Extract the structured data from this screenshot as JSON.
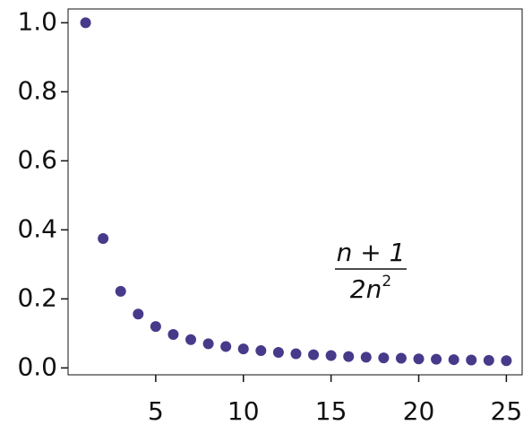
{
  "chart_data": {
    "type": "scatter",
    "color": "#473a8a",
    "x": [
      1,
      2,
      3,
      4,
      5,
      6,
      7,
      8,
      9,
      10,
      11,
      12,
      13,
      14,
      15,
      16,
      17,
      18,
      19,
      20,
      21,
      22,
      23,
      24,
      25
    ],
    "values": [
      1.0,
      0.375,
      0.222,
      0.156,
      0.12,
      0.097,
      0.082,
      0.07,
      0.062,
      0.055,
      0.05,
      0.045,
      0.041,
      0.038,
      0.036,
      0.033,
      0.031,
      0.029,
      0.028,
      0.026,
      0.025,
      0.024,
      0.023,
      0.022,
      0.021
    ],
    "xlim": [
      0,
      25.9
    ],
    "ylim": [
      -0.02,
      1.04
    ],
    "xticks": [
      5,
      10,
      15,
      20,
      25
    ],
    "yticks": [
      {
        "value": 0,
        "label": "0.0"
      },
      0.2,
      0.4,
      0.6,
      0.8,
      {
        "value": 1,
        "label": "1.0"
      }
    ],
    "annotation": {
      "numerator": "n + 1",
      "denominator": "2n",
      "superscript": "2"
    }
  }
}
